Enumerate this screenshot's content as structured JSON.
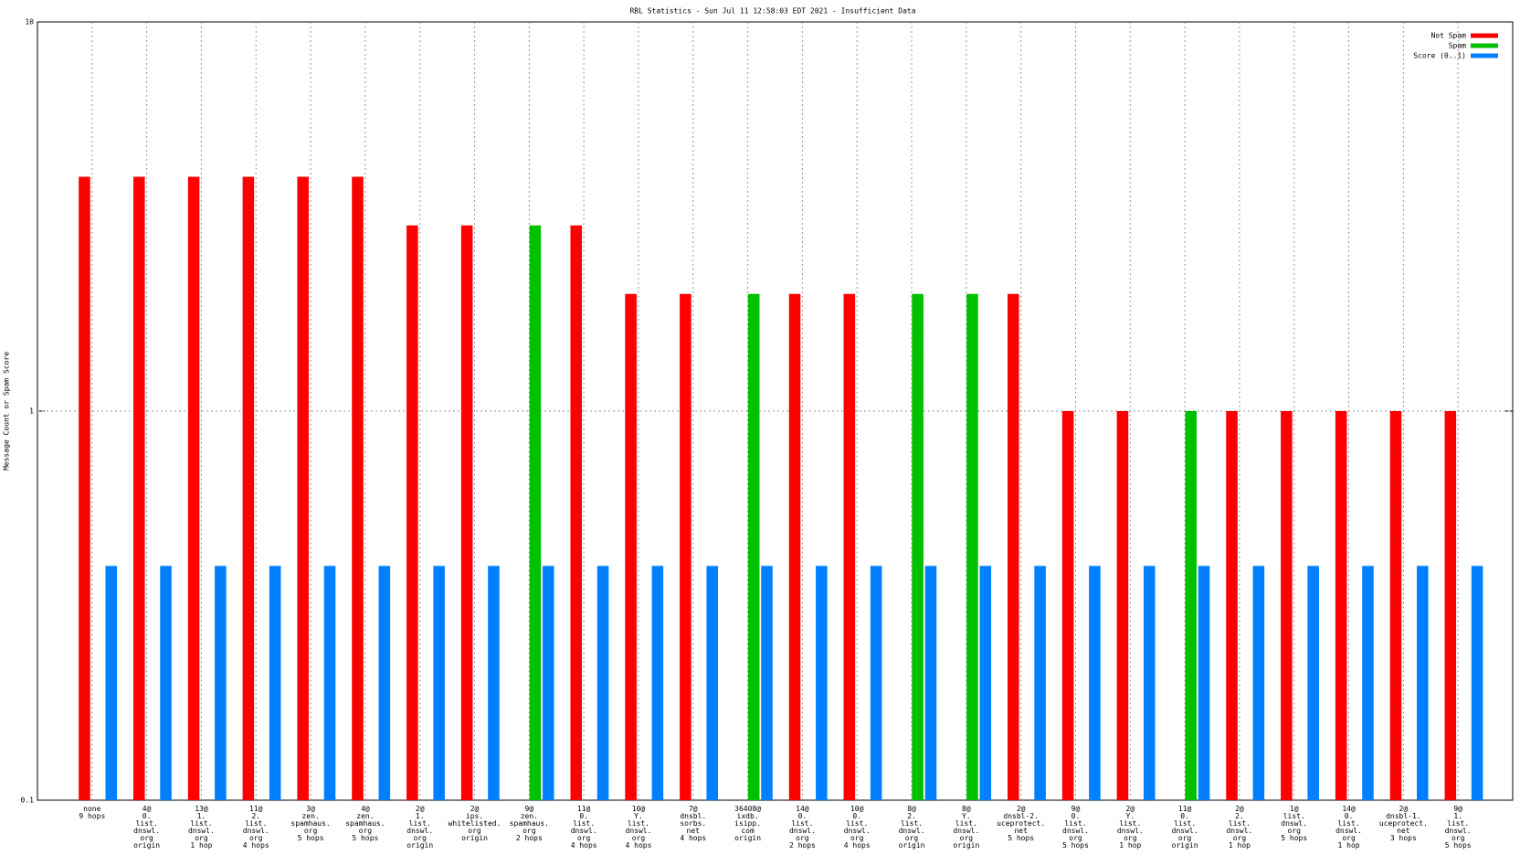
{
  "chart_data": {
    "type": "bar",
    "title": "RBL Statistics - Sun Jul 11 12:58:03 EDT 2021 - Insufficient Data",
    "y_label": "Message Count or Spam Score",
    "log_scale": true,
    "grid": true,
    "legend_position": "top-right",
    "ylim": [
      0.1,
      10
    ],
    "yticks": [
      0.1,
      1,
      10
    ],
    "categories": [
      "none\n9 hops",
      "4@\n0.\nlist.\ndnswl.\norg\norigin",
      "13@\n1.\nlist.\ndnswl.\norg\n1 hop",
      "11@\n2.\nlist.\ndnswl.\norg\n4 hops",
      "3@\nzen.\nspamhaus.\norg\n5 hops",
      "4@\nzen.\nspamhaus.\norg\n5 hops",
      "2@\n1.\nlist.\ndnswl.\norg\norigin",
      "2@\nips.\nwhitelisted.\norg\norigin",
      "9@\nzen.\nspamhaus.\norg\n2 hops",
      "11@\n0.\nlist.\ndnswl.\norg\n4 hops",
      "10@\nY.\nlist.\ndnswl.\norg\n4 hops",
      "7@\ndnsbl.\nsorbs.\nnet\n4 hops",
      "36408@\nixdb.\nisipp.\ncom\norigin",
      "14@\n0.\nlist.\ndnswl.\norg\n2 hops",
      "10@\n0.\nlist.\ndnswl.\norg\n4 hops",
      "8@\n2.\nlist.\ndnswl.\norg\norigin",
      "8@\nY.\nlist.\ndnswl.\norg\norigin",
      "2@\ndnsbl-2.\nuceprotect.\nnet\n5 hops",
      "9@\n0.\nlist.\ndnswl.\norg\n5 hops",
      "2@\nY.\nlist.\ndnswl.\norg\n1 hop",
      "11@\n0.\nlist.\ndnswl.\norg\norigin",
      "2@\n2.\nlist.\ndnswl.\norg\n1 hop",
      "1@\nlist.\ndnswl.\norg\n5 hops",
      "14@\n0.\nlist.\ndnswl.\norg\n1 hop",
      "2@\ndnsbl-1.\nuceprotect.\nnet\n3 hops",
      "9@\n1.\nlist.\ndnswl.\norg\n5 hops"
    ],
    "series": [
      {
        "name": "Not Spam",
        "color": "#ff0000",
        "values": [
          4,
          4,
          4,
          4,
          4,
          4,
          3,
          3,
          null,
          3,
          2,
          2,
          null,
          2,
          2,
          null,
          null,
          2,
          1,
          1,
          null,
          1,
          1,
          1,
          1,
          1
        ]
      },
      {
        "name": "Spam",
        "color": "#00c000",
        "values": [
          null,
          null,
          null,
          null,
          null,
          null,
          null,
          null,
          3,
          null,
          null,
          null,
          2,
          null,
          null,
          2,
          2,
          null,
          null,
          null,
          1,
          null,
          null,
          null,
          null,
          null
        ]
      },
      {
        "name": "Score (0..1)",
        "color": "#0080ff",
        "values": [
          0.4,
          0.4,
          0.4,
          0.4,
          0.4,
          0.4,
          0.4,
          0.4,
          0.4,
          0.4,
          0.4,
          0.4,
          0.4,
          0.4,
          0.4,
          0.4,
          0.4,
          0.4,
          0.4,
          0.4,
          0.4,
          0.4,
          0.4,
          0.4,
          0.4,
          0.4
        ]
      }
    ]
  }
}
